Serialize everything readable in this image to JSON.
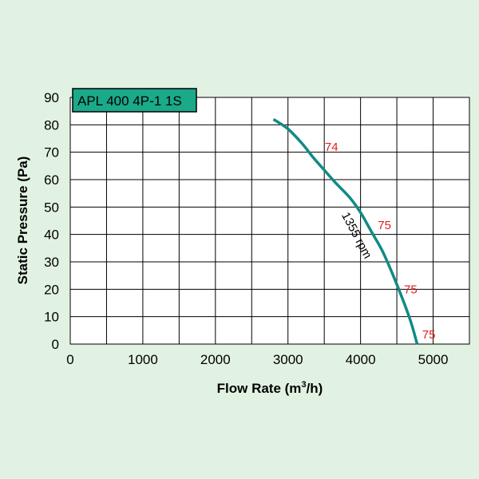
{
  "chart_data": {
    "type": "line",
    "title": "APL 400 4P-1 1S",
    "xlabel_main": "Flow Rate (m",
    "xlabel_sup": "3",
    "xlabel_tail": "/h)",
    "ylabel": "Static Pressure (Pa)",
    "xlim": [
      0,
      5500
    ],
    "ylim": [
      0,
      90
    ],
    "x_ticks": [
      0,
      1000,
      2000,
      3000,
      4000,
      5000
    ],
    "x_gridlines": [
      0,
      500,
      1000,
      1500,
      2000,
      2500,
      3000,
      3500,
      4000,
      4500,
      5000,
      5500
    ],
    "y_ticks": [
      0,
      10,
      20,
      30,
      40,
      50,
      60,
      70,
      80,
      90
    ],
    "grid": true,
    "series": [
      {
        "name": "1355 rpm",
        "color": "#128a85",
        "points": [
          [
            2800,
            82
          ],
          [
            3000,
            78.5
          ],
          [
            3200,
            73
          ],
          [
            3350,
            68
          ],
          [
            3500,
            63.5
          ],
          [
            3650,
            59
          ],
          [
            3850,
            53.5
          ],
          [
            4000,
            48
          ],
          [
            4150,
            41
          ],
          [
            4300,
            34
          ],
          [
            4450,
            25
          ],
          [
            4600,
            15
          ],
          [
            4700,
            7.5
          ],
          [
            4780,
            0
          ]
        ]
      }
    ],
    "annotations": {
      "rpm_label": {
        "text": "1355 rpm",
        "x": 3900,
        "y": 39,
        "angle": 62
      },
      "noise_labels": [
        {
          "text": "74",
          "x": 3600,
          "y": 70.5
        },
        {
          "text": "75",
          "x": 4330,
          "y": 42
        },
        {
          "text": "75",
          "x": 4690,
          "y": 18.5
        },
        {
          "text": "75",
          "x": 4940,
          "y": 2
        }
      ]
    },
    "colors": {
      "background": "#e2f2e2",
      "plot_area": "#ffffff",
      "grid": "#000000",
      "title_box": "#1aaa8a",
      "curve": "#128a85",
      "noise_text": "#e31b1b"
    }
  }
}
